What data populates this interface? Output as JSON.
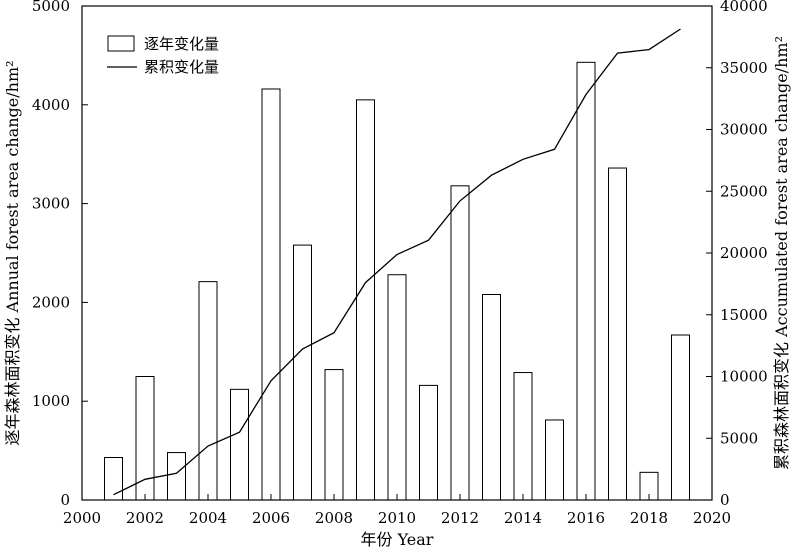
{
  "chart_data": {
    "type": "bar",
    "x": [
      2001,
      2002,
      2003,
      2004,
      2005,
      2006,
      2007,
      2008,
      2009,
      2010,
      2011,
      2012,
      2013,
      2014,
      2015,
      2016,
      2017,
      2018,
      2019
    ],
    "series": [
      {
        "name": "逐年变化量",
        "type": "bar",
        "axis": "left",
        "values": [
          430,
          1250,
          480,
          2210,
          1120,
          4160,
          2580,
          1320,
          4050,
          2280,
          1160,
          3180,
          2080,
          1290,
          810,
          4430,
          3360,
          280,
          1670
        ]
      },
      {
        "name": "累积变化量",
        "type": "line",
        "axis": "right",
        "values": [
          430,
          1680,
          2160,
          4370,
          5490,
          9650,
          12230,
          13550,
          17600,
          19880,
          21040,
          24220,
          26300,
          27590,
          28400,
          32830,
          36190,
          36470,
          38140
        ]
      }
    ],
    "xlabel": "年份 Year",
    "ylabel_left": "逐年森林面积变化 Annual forest area change/hm²",
    "ylabel_right": "累积森林面积变化 Accumulated forest area change/hm²",
    "xlim": [
      2000,
      2020
    ],
    "ylim_left": [
      0,
      5000
    ],
    "ylim_right": [
      0,
      40000
    ],
    "xticks": [
      "2000",
      "2002",
      "2004",
      "2006",
      "2008",
      "2010",
      "2012",
      "2014",
      "2016",
      "2018",
      "2020"
    ],
    "yticks_left": [
      "0",
      "1000",
      "2000",
      "3000",
      "4000",
      "5000"
    ],
    "yticks_right": [
      "0",
      "5000",
      "10000",
      "15000",
      "20000",
      "25000",
      "30000",
      "35000",
      "40000"
    ],
    "grid": false,
    "legend": "top-left",
    "bar_fill": "#ffffff",
    "stroke_color": "#000000"
  }
}
